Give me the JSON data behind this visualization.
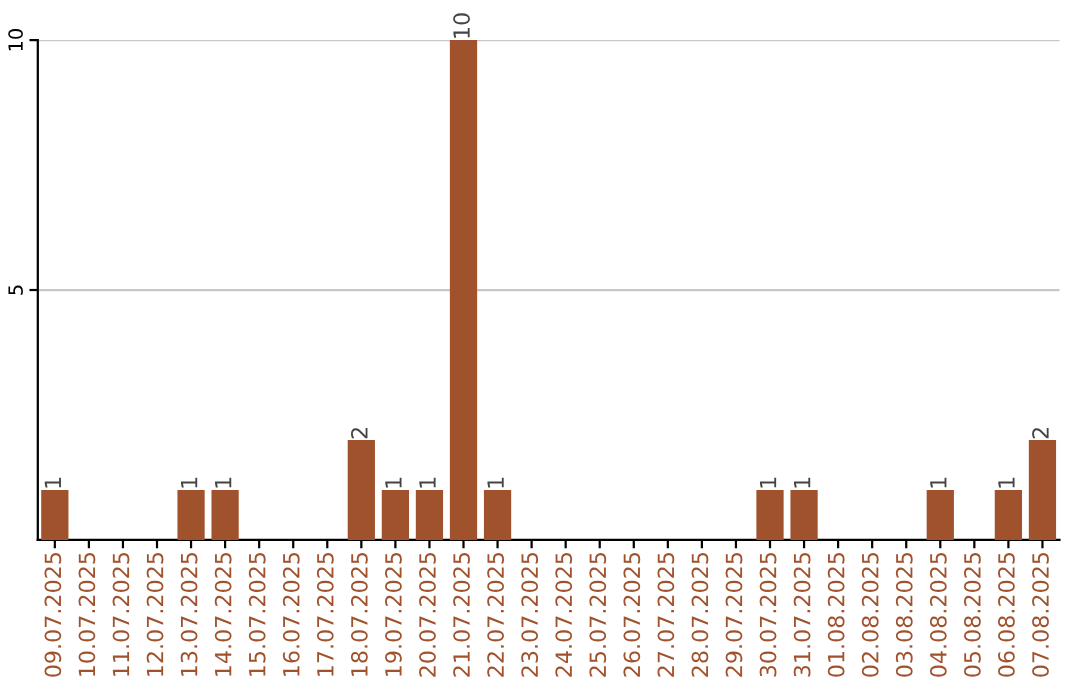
{
  "chart_data": {
    "type": "bar",
    "categories": [
      "09.07.2025",
      "10.07.2025",
      "11.07.2025",
      "12.07.2025",
      "13.07.2025",
      "14.07.2025",
      "15.07.2025",
      "16.07.2025",
      "17.07.2025",
      "18.07.2025",
      "19.07.2025",
      "20.07.2025",
      "21.07.2025",
      "22.07.2025",
      "23.07.2025",
      "24.07.2025",
      "25.07.2025",
      "26.07.2025",
      "27.07.2025",
      "28.07.2025",
      "29.07.2025",
      "30.07.2025",
      "31.07.2025",
      "01.08.2025",
      "02.08.2025",
      "03.08.2025",
      "04.08.2025",
      "05.08.2025",
      "06.08.2025",
      "07.08.2025"
    ],
    "values": [
      1,
      0,
      0,
      0,
      1,
      1,
      0,
      0,
      0,
      2,
      1,
      1,
      10,
      1,
      0,
      0,
      0,
      0,
      0,
      0,
      0,
      1,
      1,
      0,
      0,
      0,
      1,
      0,
      1,
      2
    ],
    "value_labels": [
      "1",
      null,
      null,
      null,
      "1",
      "1",
      null,
      null,
      null,
      "2",
      "1",
      "1",
      "10",
      "1",
      null,
      null,
      null,
      null,
      null,
      null,
      null,
      "1",
      "1",
      null,
      null,
      null,
      "1",
      null,
      "1",
      "2"
    ],
    "color": "#a0522d",
    "ylim": [
      0,
      10
    ],
    "yticks": [
      5,
      10
    ],
    "grid": "y"
  }
}
